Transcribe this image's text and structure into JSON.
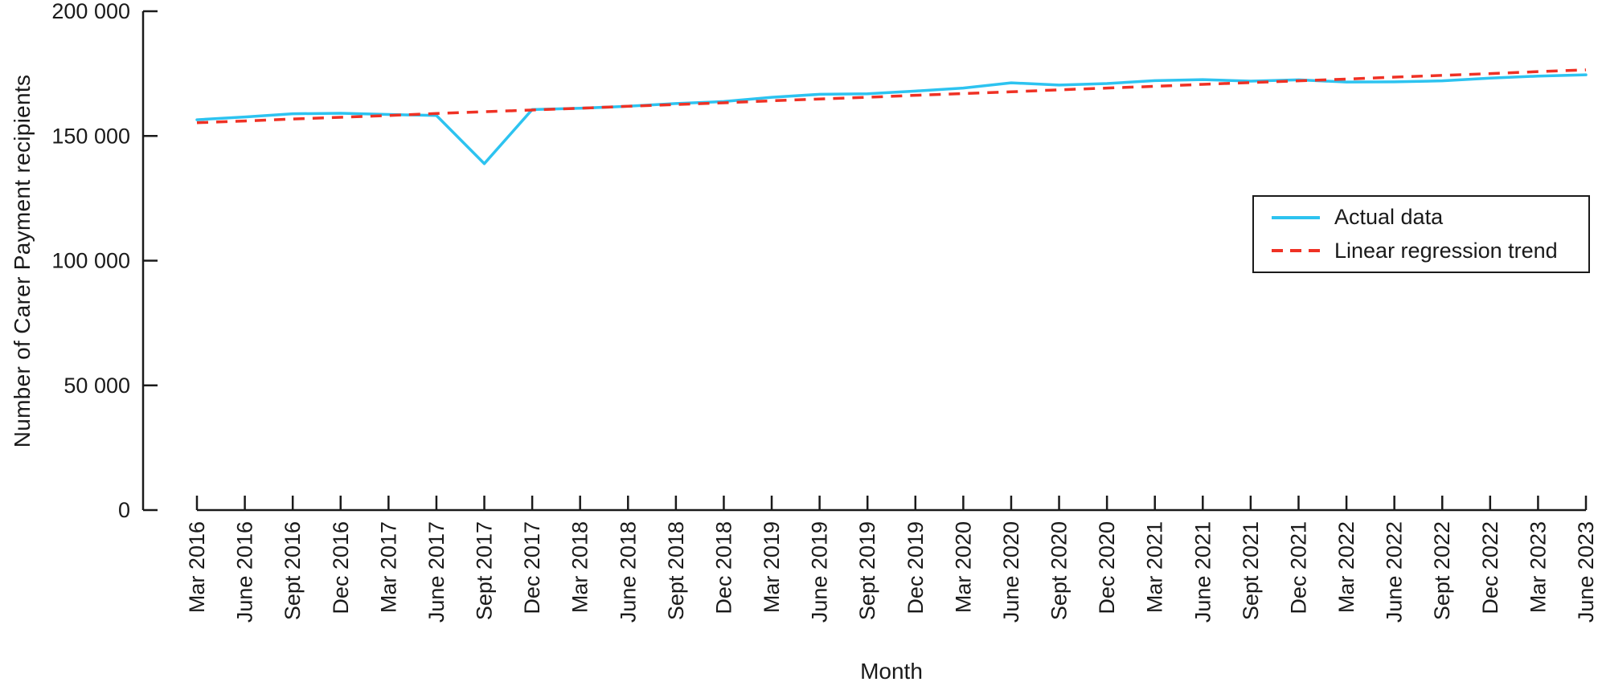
{
  "figure": {
    "background": "#ffffff",
    "text_color": "#1a1a1a"
  },
  "chart_data": {
    "type": "line",
    "title": "",
    "xlabel": "Month",
    "ylabel": "Number of Carer Payment recipients",
    "ylim": [
      0,
      200000
    ],
    "grid": false,
    "axis_color": "#1a1a1a",
    "y_ticks": {
      "labels": [
        "200 000",
        "150 000",
        "100 000",
        "50 000",
        "0"
      ],
      "values": [
        200000,
        150000,
        100000,
        50000,
        0
      ]
    },
    "categories": [
      "Mar 2016",
      "June 2016",
      "Sept 2016",
      "Dec 2016",
      "Mar 2017",
      "June 2017",
      "Sept 2017",
      "Dec 2017",
      "Mar 2018",
      "June 2018",
      "Sept 2018",
      "Dec 2018",
      "Mar 2019",
      "June 2019",
      "Sept 2019",
      "Dec 2019",
      "Mar 2020",
      "June 2020",
      "Sept 2020",
      "Dec 2020",
      "Mar 2021",
      "June 2021",
      "Sept 2021",
      "Dec 2021",
      "Mar 2022",
      "June 2022",
      "Sept 2022",
      "Dec 2022",
      "Mar 2023",
      "June 2023"
    ],
    "series": [
      {
        "name": "Actual data",
        "style": "solid",
        "color": "#2DC3F0",
        "values": [
          156500,
          157600,
          158900,
          159100,
          158600,
          158200,
          138900,
          160600,
          161100,
          161900,
          163000,
          163800,
          165500,
          166700,
          166900,
          168000,
          169200,
          171300,
          170400,
          171000,
          172200,
          172600,
          172000,
          172500,
          171600,
          171700,
          172100,
          173200,
          174000,
          174500
        ]
      },
      {
        "name": "Linear regression trend",
        "style": "dashed",
        "color": "#EF3124",
        "values": [
          155300,
          156000,
          156800,
          157500,
          158200,
          159000,
          159700,
          160400,
          161100,
          161900,
          162600,
          163300,
          164100,
          164800,
          165500,
          166300,
          167000,
          167700,
          168500,
          169200,
          169900,
          170700,
          171400,
          172100,
          172800,
          173600,
          174300,
          175000,
          175800,
          176500
        ]
      }
    ],
    "legend": {
      "position": "upper-right",
      "border": true
    }
  }
}
